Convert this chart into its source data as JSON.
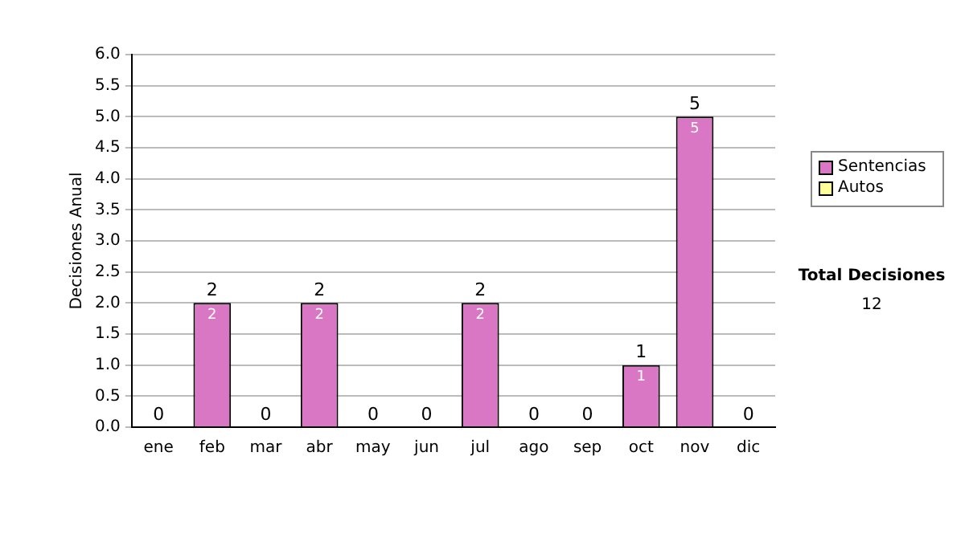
{
  "chart_data": {
    "type": "bar",
    "stacked": true,
    "ylabel": "Decisiones Anual",
    "categories": [
      "ene",
      "feb",
      "mar",
      "abr",
      "may",
      "jun",
      "jul",
      "ago",
      "sep",
      "oct",
      "nov",
      "dic"
    ],
    "series": [
      {
        "name": "Sentencias",
        "color": "#d977c4",
        "values": [
          0,
          2,
          0,
          2,
          0,
          0,
          2,
          0,
          0,
          1,
          5,
          0
        ],
        "value_labels": [
          null,
          "2",
          null,
          "2",
          null,
          null,
          "2",
          null,
          null,
          "1",
          "5",
          null
        ]
      },
      {
        "name": "Autos",
        "color": "#ffff99",
        "values": [
          0,
          0,
          0,
          0,
          0,
          0,
          0,
          0,
          0,
          0,
          0,
          0
        ]
      }
    ],
    "totals": [
      "0",
      "2",
      "0",
      "2",
      "0",
      "0",
      "2",
      "0",
      "0",
      "1",
      "5",
      "0"
    ],
    "ylim": [
      0,
      6
    ],
    "yticks": [
      {
        "value": 0,
        "label": "0.0"
      },
      {
        "value": 0.5,
        "label": "0.5"
      },
      {
        "value": 1,
        "label": "1.0"
      },
      {
        "value": 1.5,
        "label": "1.5"
      },
      {
        "value": 2,
        "label": "2.0"
      },
      {
        "value": 2.5,
        "label": "2.5"
      },
      {
        "value": 3,
        "label": "3.0"
      },
      {
        "value": 3.5,
        "label": "3.5"
      },
      {
        "value": 4,
        "label": "4.0"
      },
      {
        "value": 4.5,
        "label": "4.5"
      },
      {
        "value": 5,
        "label": "5.0"
      },
      {
        "value": 5.5,
        "label": "5.5"
      },
      {
        "value": 6,
        "label": "6.0"
      }
    ],
    "grid": "y",
    "legend": "right",
    "annotations": [
      "Total Decisiones",
      "12"
    ]
  }
}
